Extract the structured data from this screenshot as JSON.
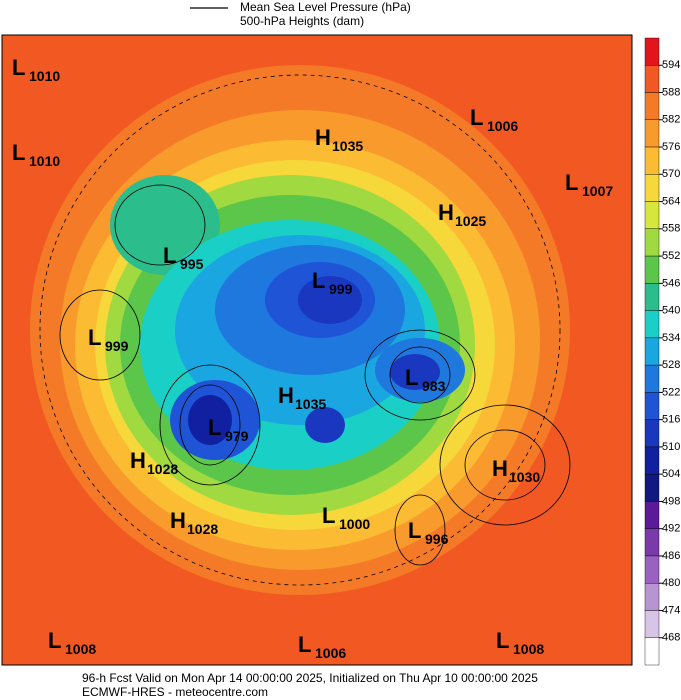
{
  "header": {
    "legend": [
      "Mean Sea Level Pressure (hPa)",
      "500-hPa Heights (dam)"
    ]
  },
  "colorbar": {
    "levels": [
      594,
      588,
      582,
      576,
      570,
      564,
      558,
      552,
      546,
      540,
      534,
      528,
      522,
      516,
      510,
      504,
      498,
      492,
      486,
      480,
      474,
      468
    ],
    "colors": [
      "#e3141e",
      "#f25822",
      "#f57a27",
      "#f89a2c",
      "#fbbb33",
      "#f6d83a",
      "#d6e63c",
      "#a0da40",
      "#5cc64a",
      "#2cbd8c",
      "#19cfc6",
      "#1aa6e0",
      "#1e78de",
      "#1f54d6",
      "#1a37bf",
      "#1020a0",
      "#111882",
      "#5a1a9a",
      "#7a3aaa",
      "#9a62c0",
      "#b894d2",
      "#d8c4e6",
      "#ffffff"
    ]
  },
  "centers": [
    {
      "type": "L",
      "value": 1010
    },
    {
      "type": "L",
      "value": 1010
    },
    {
      "type": "H",
      "value": 1035
    },
    {
      "type": "L",
      "value": 1006
    },
    {
      "type": "L",
      "value": 1007
    },
    {
      "type": "H",
      "value": 1025
    },
    {
      "type": "L",
      "value": 995
    },
    {
      "type": "L",
      "value": 999
    },
    {
      "type": "L",
      "value": 999
    },
    {
      "type": "L",
      "value": 983
    },
    {
      "type": "H",
      "value": 1035
    },
    {
      "type": "L",
      "value": 979
    },
    {
      "type": "H",
      "value": 1028
    },
    {
      "type": "H",
      "value": 1030
    },
    {
      "type": "H",
      "value": 1028
    },
    {
      "type": "L",
      "value": 1000
    },
    {
      "type": "L",
      "value": 996
    },
    {
      "type": "L",
      "value": 1008
    },
    {
      "type": "L",
      "value": 1006
    },
    {
      "type": "L",
      "value": 1008
    }
  ],
  "footer": [
    "96-h Fcst Valid on Mon Apr 14 00:00:00 2025, Initialized on Thu Apr 10 00:00:00 2025",
    "ECMWF-HRES  - meteocentre.com"
  ]
}
